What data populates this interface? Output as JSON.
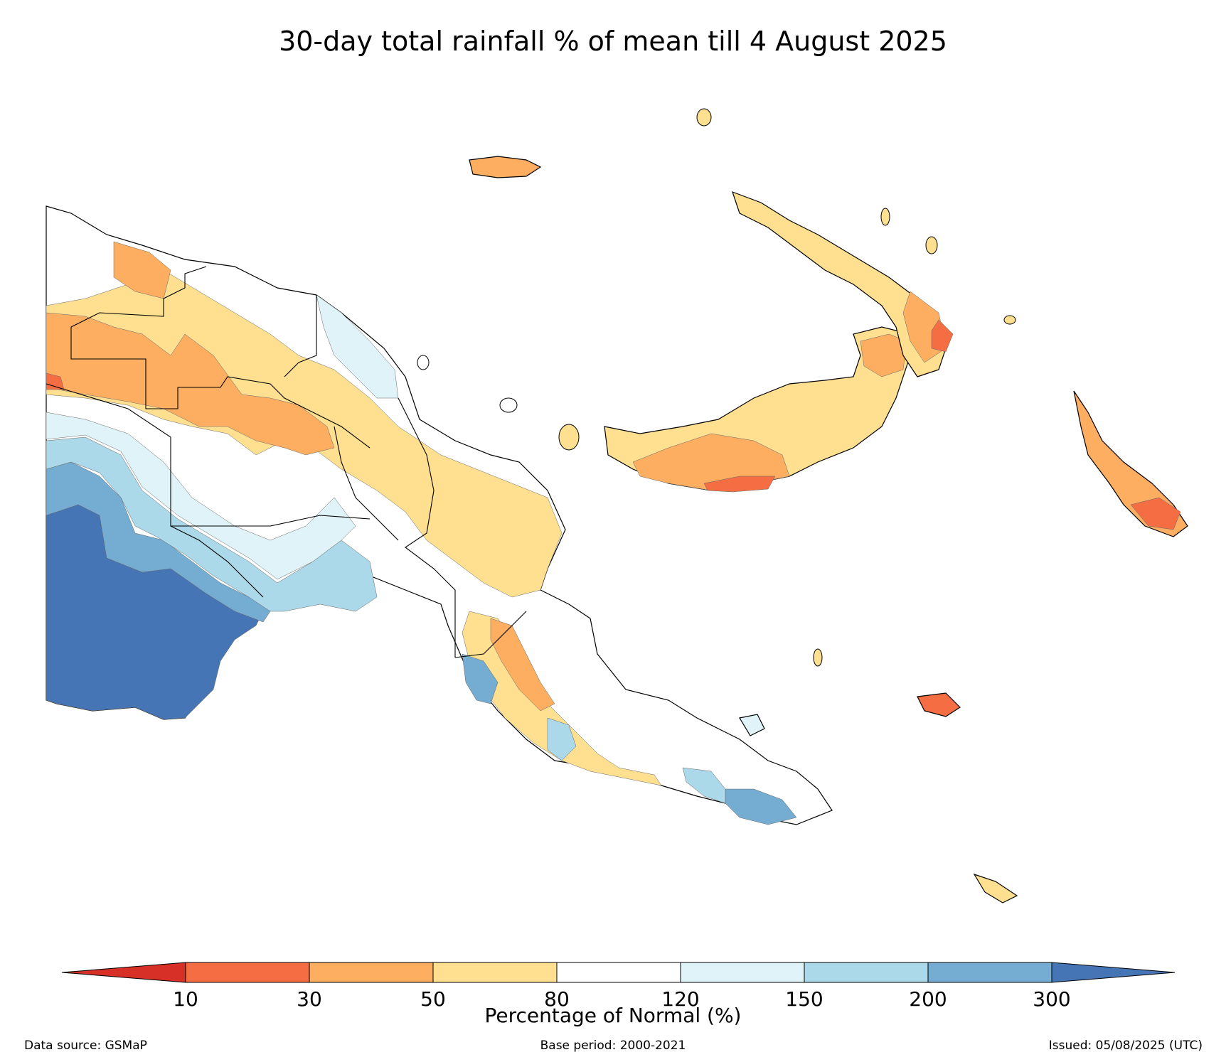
{
  "title": "30-day total rainfall % of mean till 4 August 2025",
  "legend": {
    "title": "Percentage of Normal (%)",
    "ticks": [
      "10",
      "30",
      "50",
      "80",
      "120",
      "150",
      "200",
      "300"
    ],
    "colors": {
      "below_10": "#d73027",
      "10_30": "#f46d43",
      "30_50": "#fdae61",
      "50_80": "#fee090",
      "80_120": "#ffffff",
      "120_150": "#e0f3f8",
      "150_200": "#abd9e9",
      "200_300": "#74add1",
      "above_300": "#4575b4"
    }
  },
  "footer": {
    "source": "Data source: GSMaP",
    "base_period": "Base period: 2000-2021",
    "issued": "Issued: 05/08/2025 (UTC)"
  }
}
